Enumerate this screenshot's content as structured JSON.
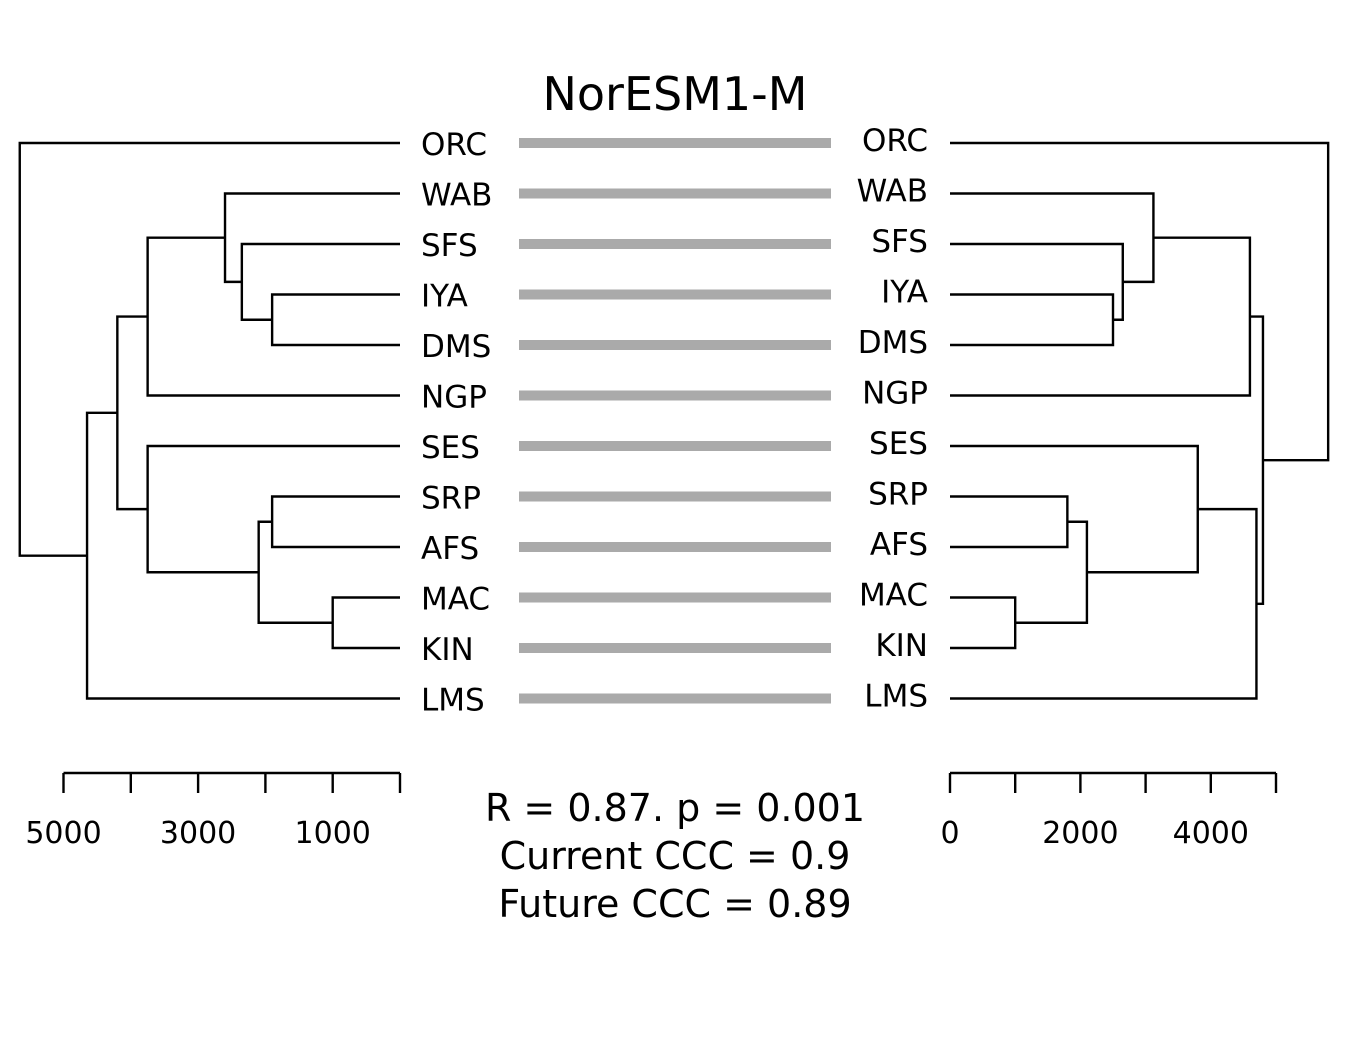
{
  "chart_data": {
    "type": "tanglegram",
    "title": "NorESM1-M",
    "labels": [
      "ORC",
      "WAB",
      "SFS",
      "IYA",
      "DMS",
      "NGP",
      "SES",
      "SRP",
      "AFS",
      "MAC",
      "KIN",
      "LMS"
    ],
    "left_dendrogram": {
      "axis_ticks": [
        0,
        1000,
        2000,
        3000,
        4000,
        5000
      ],
      "axis_tick_labels": [
        "5000",
        "3000",
        "1000"
      ],
      "merges": [
        {
          "height": 1000,
          "children": [
            "MAC",
            "KIN"
          ]
        },
        {
          "height": 1900,
          "children": [
            "IYA",
            "DMS"
          ]
        },
        {
          "height": 1900,
          "children": [
            "SRP",
            "AFS"
          ]
        },
        {
          "height": 2100,
          "children": [
            "SRP-AFS",
            "MAC-KIN"
          ]
        },
        {
          "height": 2350,
          "children": [
            "SFS",
            "IYA-DMS"
          ]
        },
        {
          "height": 2600,
          "children": [
            "WAB",
            "SFS-IYA-DMS"
          ]
        },
        {
          "height": 3750,
          "children": [
            "WAB-SFS-IYA-DMS",
            "NGP"
          ]
        },
        {
          "height": 3750,
          "children": [
            "SES",
            "SRP-AFS-MAC-KIN"
          ]
        },
        {
          "height": 4200,
          "children": [
            "WAB..NGP",
            "SES..KIN"
          ]
        },
        {
          "height": 4650,
          "children": [
            "WAB..KIN",
            "LMS"
          ]
        },
        {
          "height": 5650,
          "children": [
            "ORC",
            "WAB..LMS"
          ]
        }
      ]
    },
    "right_dendrogram": {
      "axis_ticks": [
        0,
        1000,
        2000,
        3000,
        4000,
        5000
      ],
      "axis_tick_labels": [
        "0",
        "2000",
        "4000"
      ],
      "merges": [
        {
          "height": 1000,
          "children": [
            "MAC",
            "KIN"
          ]
        },
        {
          "height": 1800,
          "children": [
            "SRP",
            "AFS"
          ]
        },
        {
          "height": 2100,
          "children": [
            "SRP-AFS",
            "MAC-KIN"
          ]
        },
        {
          "height": 2500,
          "children": [
            "IYA",
            "DMS"
          ]
        },
        {
          "height": 2650,
          "children": [
            "SFS",
            "IYA-DMS"
          ]
        },
        {
          "height": 3120,
          "children": [
            "WAB",
            "SFS-IYA-DMS"
          ]
        },
        {
          "height": 3800,
          "children": [
            "SES",
            "SRP-AFS-MAC-KIN"
          ]
        },
        {
          "height": 4600,
          "children": [
            "WAB-SFS-IYA-DMS",
            "NGP"
          ]
        },
        {
          "height": 4700,
          "children": [
            "SES..KIN",
            "LMS"
          ]
        },
        {
          "height": 4800,
          "children": [
            "WAB..NGP",
            "SES..LMS"
          ]
        },
        {
          "height": 5800,
          "children": [
            "ORC",
            "WAB..LMS"
          ]
        }
      ]
    },
    "connections": [
      [
        "ORC",
        "ORC"
      ],
      [
        "WAB",
        "WAB"
      ],
      [
        "SFS",
        "SFS"
      ],
      [
        "IYA",
        "IYA"
      ],
      [
        "DMS",
        "DMS"
      ],
      [
        "NGP",
        "NGP"
      ],
      [
        "SES",
        "SES"
      ],
      [
        "SRP",
        "SRP"
      ],
      [
        "AFS",
        "AFS"
      ],
      [
        "MAC",
        "MAC"
      ],
      [
        "KIN",
        "KIN"
      ],
      [
        "LMS",
        "LMS"
      ]
    ],
    "connection_color": "#aaaaaa",
    "stats": [
      "R = 0.87. p = 0.001",
      "Current CCC = 0.9",
      "Future CCC = 0.89"
    ]
  }
}
